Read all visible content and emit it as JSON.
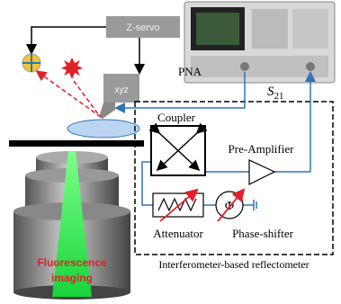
{
  "nodes": {
    "z_servo": "Z-servo",
    "xyz": "xyz",
    "pna": "PNA",
    "s21": {
      "symbol": "S",
      "subscript": "21"
    },
    "coupler": "Coupler",
    "pre_amplifier": "Pre-Amplifier",
    "attenuator": "Attenuator",
    "phase_symbol": "Φ",
    "phase_shifter": "Phase-shifter",
    "reflectometer": "Interferometer-based reflectometer",
    "imaging": [
      "Fluorescence",
      "imaging"
    ]
  }
}
